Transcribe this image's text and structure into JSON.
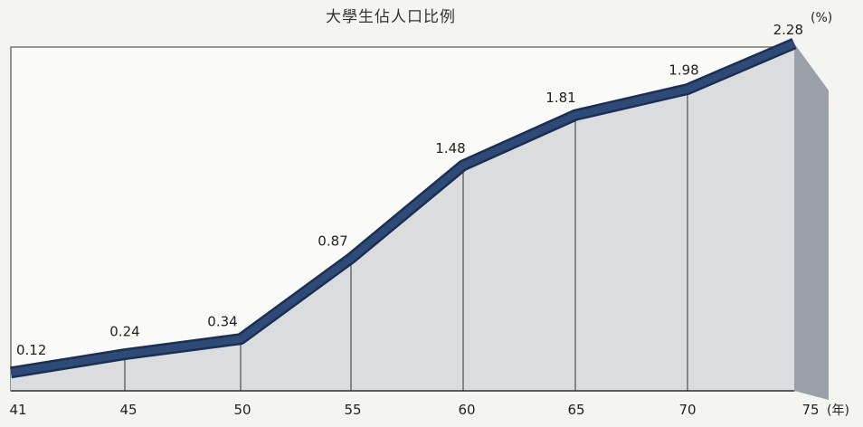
{
  "chart_data": {
    "type": "area",
    "title": "大學生佔人口比例",
    "unit_y": "(%)",
    "unit_x": "(年)",
    "x": [
      41,
      45,
      50,
      55,
      60,
      65,
      70,
      75
    ],
    "values": [
      0.12,
      0.24,
      0.34,
      0.87,
      1.48,
      1.81,
      1.98,
      2.28
    ],
    "value_labels": [
      "0.12",
      "0.24",
      "0.34",
      "0.87",
      "1.48",
      "1.81",
      "1.98",
      "2.28"
    ],
    "x_tick_labels": [
      "41",
      "45",
      "50",
      "55",
      "60",
      "65",
      "70",
      "75"
    ],
    "colors": {
      "line": "#2e4b78",
      "fill": "#dadcde",
      "side": "#9aa0a8",
      "frame": "#444444"
    }
  }
}
